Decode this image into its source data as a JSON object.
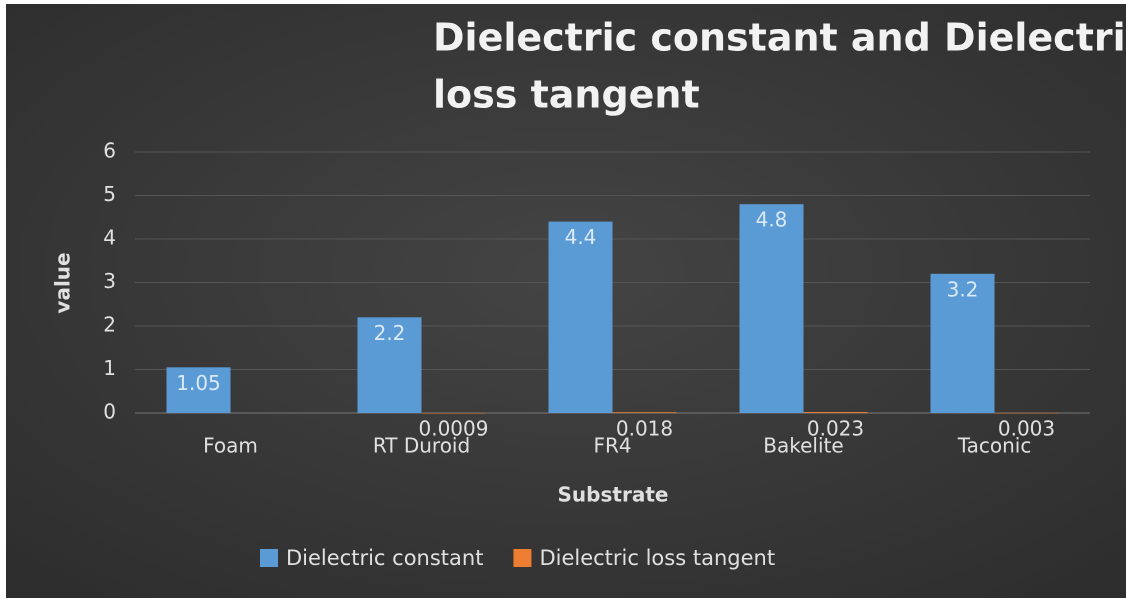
{
  "chart_data": {
    "type": "bar",
    "title": "Dielectric constant and Dielectric loss tangent",
    "x_label": "Substrate",
    "y_label": "value",
    "categories": [
      "Foam",
      "RT Duroid",
      "FR4",
      "Bakelite",
      "Taconic"
    ],
    "series": [
      {
        "name": "Dielectric constant",
        "color": "#5b9bd5",
        "values": [
          1.05,
          2.2,
          4.4,
          4.8,
          3.2
        ]
      },
      {
        "name": "Dielectric loss tangent",
        "color": "#ed7d31",
        "values": [
          null,
          0.0009,
          0.018,
          0.023,
          0.003
        ]
      }
    ],
    "ylim": [
      0,
      6
    ],
    "yticks": [
      0,
      1,
      2,
      3,
      4,
      5,
      6
    ],
    "grid": true,
    "legend": "bottom"
  }
}
